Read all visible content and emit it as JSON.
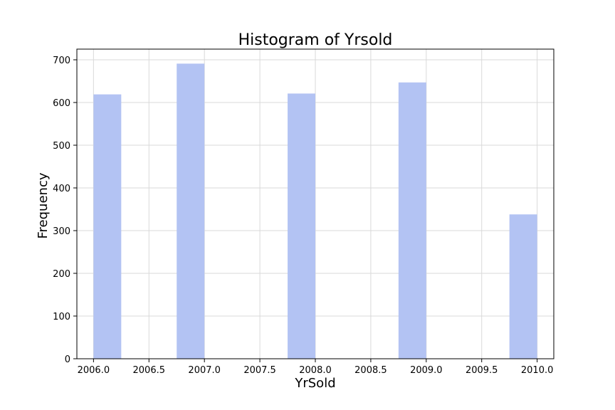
{
  "chart_data": {
    "type": "bar",
    "title": "Histogram of Yrsold",
    "xlabel": "YrSold",
    "ylabel": "Frequency",
    "bar_color": "#b3c3f3",
    "grid": true,
    "xlim": [
      2005.85,
      2010.15
    ],
    "ylim": [
      0,
      725
    ],
    "xticks": [
      2006.0,
      2006.5,
      2007.0,
      2007.5,
      2008.0,
      2008.5,
      2009.0,
      2009.5,
      2010.0
    ],
    "xtick_labels": [
      "2006.0",
      "2006.5",
      "2007.0",
      "2007.5",
      "2008.0",
      "2008.5",
      "2009.0",
      "2009.5",
      "2010.0"
    ],
    "yticks": [
      0,
      100,
      200,
      300,
      400,
      500,
      600,
      700
    ],
    "ytick_labels": [
      "0",
      "100",
      "200",
      "300",
      "400",
      "500",
      "600",
      "700"
    ],
    "bins": [
      {
        "start": 2006.0,
        "end": 2006.25,
        "value": 619
      },
      {
        "start": 2006.75,
        "end": 2007.0,
        "value": 691
      },
      {
        "start": 2007.75,
        "end": 2008.0,
        "value": 621
      },
      {
        "start": 2008.75,
        "end": 2009.0,
        "value": 647
      },
      {
        "start": 2009.75,
        "end": 2010.0,
        "value": 338
      }
    ]
  }
}
